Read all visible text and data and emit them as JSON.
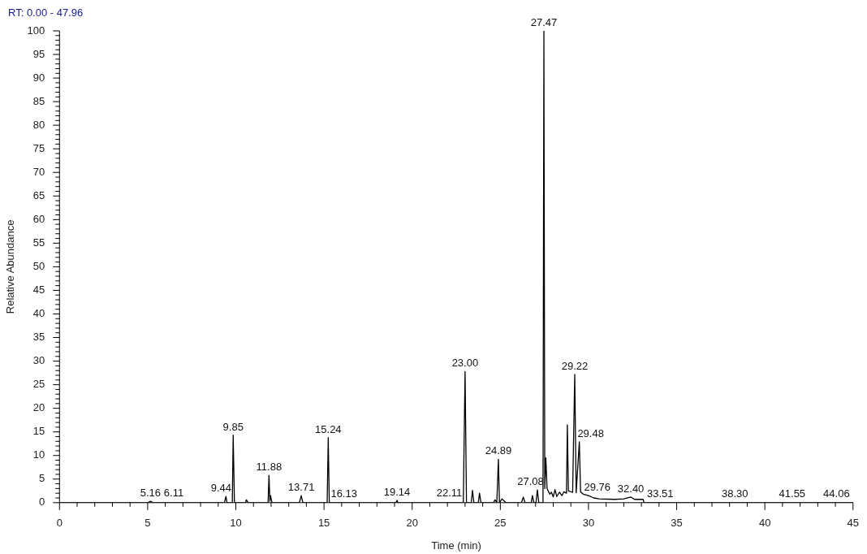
{
  "chart_data": {
    "type": "line",
    "xlabel": "Time (min)",
    "ylabel": "Relative Abundance",
    "xlim": [
      0,
      45
    ],
    "xticks": [
      0,
      {
        "value": 1,
        "label": null
      },
      {
        "value": 2,
        "label": null
      },
      {
        "value": 3,
        "label": null
      },
      {
        "value": 4,
        "label": null
      },
      5,
      {
        "value": 6,
        "label": null
      },
      {
        "value": 7,
        "label": null
      },
      {
        "value": 8,
        "label": null
      },
      {
        "value": 9,
        "label": null
      },
      10,
      {
        "value": 11,
        "label": null
      },
      {
        "value": 12,
        "label": null
      },
      {
        "value": 13,
        "label": null
      },
      {
        "value": 14,
        "label": null
      },
      15,
      {
        "value": 16,
        "label": null
      },
      {
        "value": 17,
        "label": null
      },
      {
        "value": 18,
        "label": null
      },
      {
        "value": 19,
        "label": null
      },
      20,
      {
        "value": 21,
        "label": null
      },
      {
        "value": 22,
        "label": null
      },
      {
        "value": 23,
        "label": null
      },
      {
        "value": 24,
        "label": null
      },
      25,
      {
        "value": 26,
        "label": null
      },
      {
        "value": 27,
        "label": null
      },
      {
        "value": 28,
        "label": null
      },
      {
        "value": 29,
        "label": null
      },
      30,
      {
        "value": 31,
        "label": null
      },
      {
        "value": 32,
        "label": null
      },
      {
        "value": 33,
        "label": null
      },
      {
        "value": 34,
        "label": null
      },
      35,
      {
        "value": 36,
        "label": null
      },
      {
        "value": 37,
        "label": null
      },
      {
        "value": 38,
        "label": null
      },
      {
        "value": 39,
        "label": null
      },
      40,
      {
        "value": 41,
        "label": null
      },
      {
        "value": 42,
        "label": null
      },
      {
        "value": 43,
        "label": null
      },
      {
        "value": 44,
        "label": null
      },
      45
    ],
    "ylim": [
      0,
      100
    ],
    "yticks": [
      0,
      {
        "value": 1,
        "label": null
      },
      {
        "value": 2,
        "label": null
      },
      {
        "value": 3,
        "label": null
      },
      {
        "value": 4,
        "label": null
      },
      5,
      {
        "value": 6,
        "label": null
      },
      {
        "value": 7,
        "label": null
      },
      {
        "value": 8,
        "label": null
      },
      {
        "value": 9,
        "label": null
      },
      10,
      {
        "value": 11,
        "label": null
      },
      {
        "value": 12,
        "label": null
      },
      {
        "value": 13,
        "label": null
      },
      {
        "value": 14,
        "label": null
      },
      15,
      {
        "value": 16,
        "label": null
      },
      {
        "value": 17,
        "label": null
      },
      {
        "value": 18,
        "label": null
      },
      {
        "value": 19,
        "label": null
      },
      20,
      {
        "value": 21,
        "label": null
      },
      {
        "value": 22,
        "label": null
      },
      {
        "value": 23,
        "label": null
      },
      {
        "value": 24,
        "label": null
      },
      25,
      {
        "value": 26,
        "label": null
      },
      {
        "value": 27,
        "label": null
      },
      {
        "value": 28,
        "label": null
      },
      {
        "value": 29,
        "label": null
      },
      30,
      {
        "value": 31,
        "label": null
      },
      {
        "value": 32,
        "label": null
      },
      {
        "value": 33,
        "label": null
      },
      {
        "value": 34,
        "label": null
      },
      35,
      {
        "value": 36,
        "label": null
      },
      {
        "value": 37,
        "label": null
      },
      {
        "value": 38,
        "label": null
      },
      {
        "value": 39,
        "label": null
      },
      40,
      {
        "value": 41,
        "label": null
      },
      {
        "value": 42,
        "label": null
      },
      {
        "value": 43,
        "label": null
      },
      {
        "value": 44,
        "label": null
      },
      45,
      {
        "value": 46,
        "label": null
      },
      {
        "value": 47,
        "label": null
      },
      {
        "value": 48,
        "label": null
      },
      {
        "value": 49,
        "label": null
      },
      50,
      {
        "value": 51,
        "label": null
      },
      {
        "value": 52,
        "label": null
      },
      {
        "value": 53,
        "label": null
      },
      {
        "value": 54,
        "label": null
      },
      55,
      {
        "value": 56,
        "label": null
      },
      {
        "value": 57,
        "label": null
      },
      {
        "value": 58,
        "label": null
      },
      {
        "value": 59,
        "label": null
      },
      60,
      {
        "value": 61,
        "label": null
      },
      {
        "value": 62,
        "label": null
      },
      {
        "value": 63,
        "label": null
      },
      {
        "value": 64,
        "label": null
      },
      65,
      {
        "value": 66,
        "label": null
      },
      {
        "value": 67,
        "label": null
      },
      {
        "value": 68,
        "label": null
      },
      {
        "value": 69,
        "label": null
      },
      70,
      {
        "value": 71,
        "label": null
      },
      {
        "value": 72,
        "label": null
      },
      {
        "value": 73,
        "label": null
      },
      {
        "value": 74,
        "label": null
      },
      75,
      {
        "value": 76,
        "label": null
      },
      {
        "value": 77,
        "label": null
      },
      {
        "value": 78,
        "label": null
      },
      {
        "value": 79,
        "label": null
      },
      80,
      {
        "value": 81,
        "label": null
      },
      {
        "value": 82,
        "label": null
      },
      {
        "value": 83,
        "label": null
      },
      {
        "value": 84,
        "label": null
      },
      85,
      {
        "value": 86,
        "label": null
      },
      {
        "value": 87,
        "label": null
      },
      {
        "value": 88,
        "label": null
      },
      {
        "value": 89,
        "label": null
      },
      90,
      {
        "value": 91,
        "label": null
      },
      {
        "value": 92,
        "label": null
      },
      {
        "value": 93,
        "label": null
      },
      {
        "value": 94,
        "label": null
      },
      95,
      {
        "value": 96,
        "label": null
      },
      {
        "value": 97,
        "label": null
      },
      {
        "value": 98,
        "label": null
      },
      {
        "value": 99,
        "label": null
      },
      100
    ],
    "grid": false,
    "legend": false,
    "marker": "none",
    "line_style": "solid",
    "series": [
      {
        "color": "#000000",
        "x": [
          0,
          5.0,
          5.16,
          5.3,
          9.35,
          9.44,
          9.5,
          9.8,
          9.85,
          9.92,
          10.55,
          10.6,
          10.7,
          11.83,
          11.88,
          11.93,
          11.97,
          12.05,
          13.6,
          13.71,
          13.8,
          15.18,
          15.24,
          15.3,
          19.08,
          19.14,
          19.2,
          22.9,
          23.0,
          23.08,
          23.35,
          23.42,
          23.5,
          23.75,
          23.82,
          23.9,
          24.6,
          24.7,
          24.8,
          24.89,
          24.95,
          25.1,
          25.3,
          26.2,
          26.3,
          26.4,
          26.75,
          26.82,
          26.9,
          27.02,
          27.1,
          27.18,
          27.42,
          27.47,
          27.52,
          27.58,
          27.65,
          27.8,
          27.9,
          28.0,
          28.1,
          28.2,
          28.35,
          28.5,
          28.6,
          28.75,
          28.8,
          28.86,
          29.1,
          29.22,
          29.3,
          29.48,
          29.55,
          29.7,
          30.0,
          30.3,
          30.6,
          31.5,
          32.0,
          32.4,
          32.6,
          33.1,
          33.15,
          45
        ],
        "values": [
          0,
          0,
          0.3,
          0,
          0,
          1.3,
          0,
          0,
          14.3,
          0,
          0,
          0.6,
          0,
          0,
          5.8,
          0.3,
          1.5,
          0,
          0,
          1.5,
          0,
          0,
          13.8,
          0,
          0,
          0.5,
          0,
          0,
          27.8,
          0,
          0,
          2.6,
          0,
          0,
          2.0,
          0,
          0,
          0.6,
          0,
          9.2,
          0,
          0.8,
          0,
          0,
          1.2,
          0,
          0,
          1.5,
          0,
          0,
          2.7,
          0,
          0,
          100,
          3,
          9.5,
          3,
          1.8,
          2.2,
          1.2,
          2.8,
          1.3,
          2.2,
          1.5,
          2.3,
          2,
          16.5,
          2.5,
          2.2,
          27.2,
          2.1,
          12.9,
          2.3,
          1.8,
          1.5,
          1.0,
          0.8,
          0.7,
          0.8,
          1.2,
          0.7,
          0.7,
          0,
          0
        ]
      }
    ],
    "annotations": [
      "RT: 0.00 - 47.96",
      {
        "text": "5.16",
        "x": 5.16,
        "y": 0.3
      },
      {
        "text": "6.11",
        "x": 6.11,
        "y": 0.3
      },
      {
        "text": "9.44",
        "x": 9.44,
        "y": 1.3
      },
      {
        "text": "9.85",
        "x": 9.85,
        "y": 14.3
      },
      {
        "text": "11.88",
        "x": 11.88,
        "y": 5.8
      },
      {
        "text": "13.71",
        "x": 13.71,
        "y": 1.5
      },
      {
        "text": "15.24",
        "x": 15.24,
        "y": 13.8
      },
      {
        "text": "16.13",
        "x": 16.13,
        "y": 0.2
      },
      {
        "text": "19.14",
        "x": 19.14,
        "y": 0.5
      },
      {
        "text": "22.11",
        "x": 22.11,
        "y": 0.3
      },
      {
        "text": "23.00",
        "x": 23.0,
        "y": 27.8
      },
      {
        "text": "24.89",
        "x": 24.89,
        "y": 9.2
      },
      {
        "text": "27.08",
        "x": 27.08,
        "y": 2.7
      },
      {
        "text": "27.47",
        "x": 27.47,
        "y": 100
      },
      {
        "text": "29.22",
        "x": 29.22,
        "y": 27.2
      },
      {
        "text": "29.48",
        "x": 29.48,
        "y": 12.9
      },
      {
        "text": "29.76",
        "x": 29.76,
        "y": 1.5
      },
      {
        "text": "32.40",
        "x": 32.4,
        "y": 1.2
      },
      {
        "text": "33.51",
        "x": 33.51,
        "y": 0.2
      },
      {
        "text": "38.30",
        "x": 38.3,
        "y": 0.1
      },
      {
        "text": "41.55",
        "x": 41.55,
        "y": 0.1
      },
      {
        "text": "44.06",
        "x": 44.06,
        "y": 0.1
      }
    ]
  }
}
